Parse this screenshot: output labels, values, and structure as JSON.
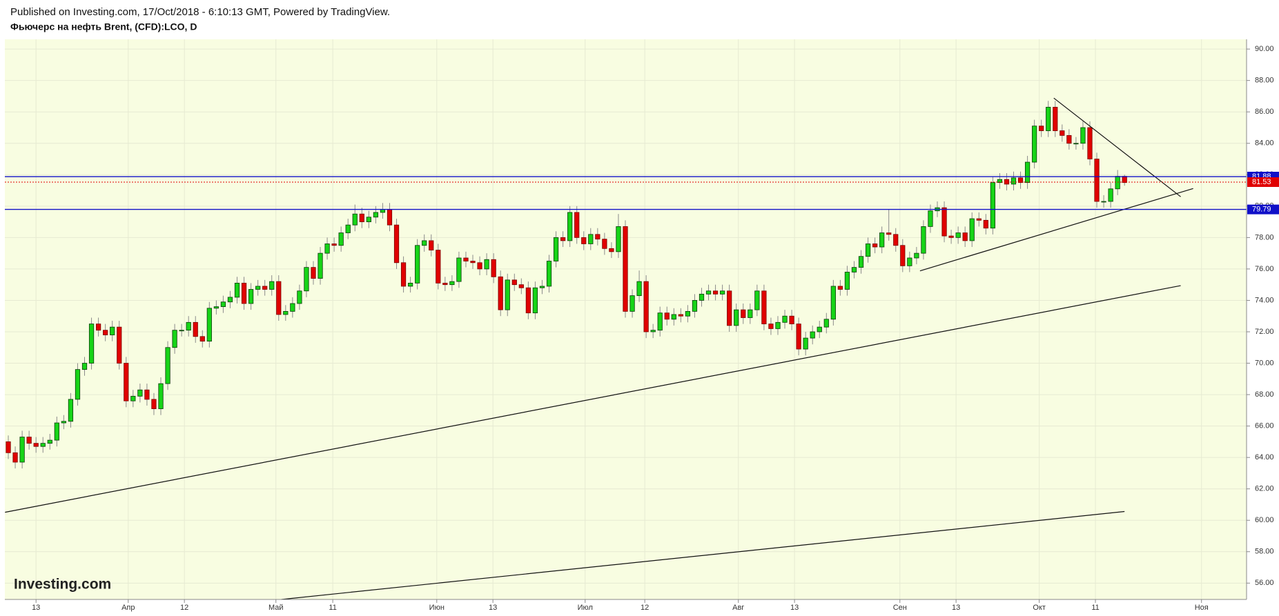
{
  "chart_data": {
    "type": "candlestick",
    "subtitle": "Published on Investing.com, 17/Oct/2018 - 6:10:13 GMT, Powered by TradingView.",
    "title": "Фьючерс на нефть Brent, (CFD):LCO, D",
    "logo": "Investing.com",
    "up_color": "#17d417",
    "down_color": "#e00000",
    "grid": true,
    "xlim": [
      -0.5,
      178.6
    ],
    "ylim": [
      54.96,
      90.62
    ],
    "xticks": [
      {
        "value": 4,
        "label": "13"
      },
      {
        "value": 17.3,
        "label": "Апр"
      },
      {
        "value": 25.4,
        "label": "12"
      },
      {
        "value": 38.6,
        "label": "Май"
      },
      {
        "value": 46.8,
        "label": "11"
      },
      {
        "value": 61.8,
        "label": "Июн"
      },
      {
        "value": 69.9,
        "label": "13"
      },
      {
        "value": 83.2,
        "label": "Июл"
      },
      {
        "value": 91.8,
        "label": "12"
      },
      {
        "value": 105.3,
        "label": "Авг"
      },
      {
        "value": 113.4,
        "label": "13"
      },
      {
        "value": 128.6,
        "label": "Сен"
      },
      {
        "value": 136.7,
        "label": "13"
      },
      {
        "value": 148.7,
        "label": "Окт"
      },
      {
        "value": 156.8,
        "label": "11"
      },
      {
        "value": 172.1,
        "label": "Ноя"
      }
    ],
    "yticks": [
      {
        "value": 56,
        "label": "56.00"
      },
      {
        "value": 58,
        "label": "58.00"
      },
      {
        "value": 60,
        "label": "60.00"
      },
      {
        "value": 62,
        "label": "62.00"
      },
      {
        "value": 64,
        "label": "64.00"
      },
      {
        "value": 66,
        "label": "66.00"
      },
      {
        "value": 68,
        "label": "68.00"
      },
      {
        "value": 70,
        "label": "70.00"
      },
      {
        "value": 72,
        "label": "72.00"
      },
      {
        "value": 74,
        "label": "74.00"
      },
      {
        "value": 76,
        "label": "76.00"
      },
      {
        "value": 78,
        "label": "78.00"
      },
      {
        "value": 80,
        "label": "80.00"
      },
      {
        "value": 82,
        "label": "82.00"
      },
      {
        "value": 84,
        "label": "84.00"
      },
      {
        "value": 86,
        "label": "86.00"
      },
      {
        "value": 88,
        "label": "88.00"
      },
      {
        "value": 90,
        "label": "90.00"
      }
    ],
    "hlines": [
      {
        "value": 81.88,
        "color": "#1010c8",
        "style": "solid"
      },
      {
        "value": 81.53,
        "color": "#e00000",
        "style": "dotted"
      },
      {
        "value": 79.79,
        "color": "#1010c8",
        "style": "solid"
      }
    ],
    "trendlines": [
      {
        "start": [
          -0.47,
          60.51
        ],
        "end": [
          169.1,
          74.94
        ]
      },
      {
        "start": [
          39.4,
          54.96
        ],
        "end": [
          161.0,
          60.56
        ]
      },
      {
        "start": [
          131.5,
          75.88
        ],
        "end": [
          170.9,
          81.12
        ]
      },
      {
        "start": [
          150.8,
          86.88
        ],
        "end": [
          169.1,
          80.6
        ]
      }
    ],
    "ohlc": [
      [
        65.0,
        65.4,
        63.9,
        64.3
      ],
      [
        64.3,
        64.7,
        63.3,
        63.7
      ],
      [
        63.7,
        65.7,
        63.3,
        65.3
      ],
      [
        65.3,
        65.7,
        64.5,
        64.9
      ],
      [
        64.9,
        65.3,
        64.3,
        64.7
      ],
      [
        64.7,
        65.3,
        64.3,
        64.9
      ],
      [
        64.9,
        65.5,
        64.5,
        65.1
      ],
      [
        65.1,
        66.6,
        64.7,
        66.2
      ],
      [
        66.2,
        66.7,
        65.8,
        66.3
      ],
      [
        66.3,
        68.1,
        65.9,
        67.7
      ],
      [
        67.7,
        70.0,
        67.3,
        69.6
      ],
      [
        69.6,
        70.4,
        69.2,
        70.0
      ],
      [
        70.0,
        72.9,
        69.6,
        72.5
      ],
      [
        72.5,
        72.9,
        71.7,
        72.1
      ],
      [
        72.1,
        72.5,
        71.4,
        71.8
      ],
      [
        71.8,
        72.7,
        71.4,
        72.3
      ],
      [
        72.3,
        72.7,
        69.6,
        70.0
      ],
      [
        70.0,
        70.4,
        67.2,
        67.6
      ],
      [
        67.6,
        68.3,
        67.2,
        67.9
      ],
      [
        67.9,
        68.7,
        67.5,
        68.3
      ],
      [
        68.3,
        68.7,
        67.3,
        67.7
      ],
      [
        67.7,
        68.1,
        66.7,
        67.1
      ],
      [
        67.1,
        69.1,
        66.7,
        68.7
      ],
      [
        68.7,
        71.4,
        68.3,
        71.0
      ],
      [
        71.0,
        72.5,
        70.6,
        72.1
      ],
      [
        72.1,
        72.5,
        71.7,
        72.1
      ],
      [
        72.1,
        73.0,
        71.7,
        72.6
      ],
      [
        72.6,
        73.0,
        71.3,
        71.7
      ],
      [
        71.7,
        72.1,
        71.0,
        71.4
      ],
      [
        71.4,
        73.9,
        71.0,
        73.5
      ],
      [
        73.5,
        74.0,
        73.1,
        73.6
      ],
      [
        73.6,
        74.3,
        73.2,
        73.9
      ],
      [
        73.9,
        74.6,
        73.5,
        74.2
      ],
      [
        74.2,
        75.5,
        73.8,
        75.1
      ],
      [
        75.1,
        75.5,
        73.4,
        73.8
      ],
      [
        73.8,
        75.1,
        73.4,
        74.7
      ],
      [
        74.7,
        75.3,
        74.3,
        74.9
      ],
      [
        74.9,
        75.3,
        74.3,
        74.7
      ],
      [
        74.7,
        75.6,
        74.3,
        75.2
      ],
      [
        75.2,
        75.6,
        72.7,
        73.1
      ],
      [
        73.1,
        73.7,
        72.7,
        73.3
      ],
      [
        73.3,
        74.2,
        72.9,
        73.8
      ],
      [
        73.8,
        75.0,
        73.4,
        74.6
      ],
      [
        74.6,
        76.5,
        74.2,
        76.1
      ],
      [
        76.1,
        76.5,
        75.0,
        75.4
      ],
      [
        75.4,
        77.4,
        75.0,
        77.0
      ],
      [
        77.0,
        78.0,
        76.6,
        77.6
      ],
      [
        77.6,
        78.0,
        77.1,
        77.5
      ],
      [
        77.5,
        78.7,
        77.1,
        78.3
      ],
      [
        78.3,
        79.2,
        77.9,
        78.8
      ],
      [
        78.8,
        80.1,
        78.4,
        79.5
      ],
      [
        79.5,
        79.9,
        78.6,
        79.0
      ],
      [
        79.0,
        79.7,
        78.6,
        79.3
      ],
      [
        79.3,
        80.0,
        78.9,
        79.6
      ],
      [
        79.6,
        80.2,
        79.2,
        79.8
      ],
      [
        79.8,
        80.2,
        78.4,
        78.8
      ],
      [
        78.8,
        79.2,
        76.0,
        76.4
      ],
      [
        76.4,
        76.8,
        74.5,
        74.9
      ],
      [
        74.9,
        75.5,
        74.5,
        75.1
      ],
      [
        75.1,
        77.9,
        74.7,
        77.5
      ],
      [
        77.5,
        78.2,
        77.1,
        77.8
      ],
      [
        77.8,
        78.2,
        76.8,
        77.2
      ],
      [
        77.2,
        77.6,
        74.7,
        75.1
      ],
      [
        75.1,
        75.5,
        74.6,
        75.0
      ],
      [
        75.0,
        75.6,
        74.6,
        75.2
      ],
      [
        75.2,
        77.1,
        74.8,
        76.7
      ],
      [
        76.7,
        77.1,
        76.1,
        76.5
      ],
      [
        76.5,
        76.9,
        76.0,
        76.4
      ],
      [
        76.4,
        76.8,
        75.6,
        76.0
      ],
      [
        76.0,
        77.0,
        75.6,
        76.6
      ],
      [
        76.6,
        77.0,
        75.1,
        75.5
      ],
      [
        75.5,
        75.9,
        73.0,
        73.4
      ],
      [
        73.4,
        75.7,
        73.0,
        75.3
      ],
      [
        75.3,
        75.7,
        74.6,
        75.0
      ],
      [
        75.0,
        75.4,
        74.4,
        74.8
      ],
      [
        74.8,
        75.2,
        72.8,
        73.2
      ],
      [
        73.2,
        75.2,
        72.8,
        74.8
      ],
      [
        74.8,
        75.3,
        74.4,
        74.9
      ],
      [
        74.9,
        76.9,
        74.5,
        76.5
      ],
      [
        76.5,
        78.4,
        76.1,
        78.0
      ],
      [
        78.0,
        78.4,
        77.4,
        77.8
      ],
      [
        77.8,
        80.0,
        77.4,
        79.6
      ],
      [
        79.6,
        80.0,
        77.6,
        78.0
      ],
      [
        78.0,
        78.4,
        77.2,
        77.6
      ],
      [
        77.6,
        78.6,
        77.2,
        78.2
      ],
      [
        78.2,
        78.6,
        77.5,
        77.9
      ],
      [
        77.9,
        78.3,
        76.9,
        77.3
      ],
      [
        77.3,
        77.7,
        76.7,
        77.1
      ],
      [
        77.1,
        79.5,
        76.7,
        78.7
      ],
      [
        78.7,
        79.1,
        72.9,
        73.3
      ],
      [
        73.3,
        74.7,
        72.9,
        74.3
      ],
      [
        74.3,
        75.9,
        73.9,
        75.2
      ],
      [
        75.2,
        75.6,
        71.6,
        72.0
      ],
      [
        72.0,
        72.5,
        71.6,
        72.1
      ],
      [
        72.1,
        73.6,
        71.7,
        73.2
      ],
      [
        73.2,
        73.6,
        72.4,
        72.8
      ],
      [
        72.8,
        73.5,
        72.4,
        73.1
      ],
      [
        73.1,
        73.5,
        72.6,
        73.0
      ],
      [
        73.0,
        73.7,
        72.6,
        73.3
      ],
      [
        73.3,
        74.4,
        72.9,
        74.0
      ],
      [
        74.0,
        74.8,
        73.6,
        74.4
      ],
      [
        74.4,
        75.0,
        74.0,
        74.6
      ],
      [
        74.6,
        75.0,
        74.0,
        74.4
      ],
      [
        74.4,
        75.0,
        74.0,
        74.6
      ],
      [
        74.6,
        75.0,
        72.0,
        72.4
      ],
      [
        72.4,
        73.8,
        72.0,
        73.4
      ],
      [
        73.4,
        73.8,
        72.5,
        72.9
      ],
      [
        72.9,
        73.8,
        72.5,
        73.4
      ],
      [
        73.4,
        75.0,
        73.0,
        74.6
      ],
      [
        74.6,
        75.0,
        72.1,
        72.5
      ],
      [
        72.5,
        72.9,
        71.8,
        72.2
      ],
      [
        72.2,
        73.0,
        71.8,
        72.6
      ],
      [
        72.6,
        73.4,
        72.2,
        73.0
      ],
      [
        73.0,
        73.4,
        72.1,
        72.5
      ],
      [
        72.5,
        72.9,
        70.5,
        70.9
      ],
      [
        70.9,
        72.0,
        70.5,
        71.6
      ],
      [
        71.6,
        72.4,
        71.2,
        72.0
      ],
      [
        72.0,
        72.7,
        71.6,
        72.3
      ],
      [
        72.3,
        73.2,
        71.9,
        72.8
      ],
      [
        72.8,
        75.3,
        72.4,
        74.9
      ],
      [
        74.9,
        75.3,
        74.3,
        74.7
      ],
      [
        74.7,
        76.2,
        74.3,
        75.8
      ],
      [
        75.8,
        76.5,
        75.4,
        76.1
      ],
      [
        76.1,
        77.2,
        75.7,
        76.8
      ],
      [
        76.8,
        78.0,
        76.4,
        77.6
      ],
      [
        77.6,
        78.0,
        77.0,
        77.4
      ],
      [
        77.4,
        78.7,
        77.0,
        78.3
      ],
      [
        78.3,
        79.8,
        77.8,
        78.2
      ],
      [
        78.2,
        78.6,
        77.1,
        77.5
      ],
      [
        77.5,
        77.9,
        75.8,
        76.2
      ],
      [
        76.2,
        77.1,
        75.8,
        76.7
      ],
      [
        76.7,
        77.4,
        76.3,
        77.0
      ],
      [
        77.0,
        79.1,
        76.6,
        78.7
      ],
      [
        78.7,
        80.1,
        78.3,
        79.7
      ],
      [
        79.7,
        80.3,
        79.3,
        79.9
      ],
      [
        79.9,
        80.3,
        77.7,
        78.1
      ],
      [
        78.1,
        78.5,
        77.6,
        78.0
      ],
      [
        78.0,
        78.7,
        77.6,
        78.3
      ],
      [
        78.3,
        78.7,
        77.4,
        77.8
      ],
      [
        77.8,
        79.6,
        77.4,
        79.2
      ],
      [
        79.2,
        79.6,
        78.7,
        79.1
      ],
      [
        79.1,
        79.5,
        78.2,
        78.6
      ],
      [
        78.6,
        81.9,
        78.2,
        81.5
      ],
      [
        81.5,
        82.1,
        81.1,
        81.7
      ],
      [
        81.7,
        82.1,
        81.0,
        81.4
      ],
      [
        81.4,
        82.2,
        81.0,
        81.8
      ],
      [
        81.8,
        82.2,
        81.1,
        81.5
      ],
      [
        81.5,
        83.2,
        81.1,
        82.8
      ],
      [
        82.8,
        85.5,
        82.4,
        85.1
      ],
      [
        85.1,
        85.5,
        84.4,
        84.8
      ],
      [
        84.8,
        86.7,
        84.4,
        86.3
      ],
      [
        86.3,
        86.7,
        84.4,
        84.8
      ],
      [
        84.8,
        85.2,
        84.1,
        84.5
      ],
      [
        84.5,
        84.9,
        83.6,
        84.0
      ],
      [
        84.0,
        84.4,
        83.6,
        84.0
      ],
      [
        84.0,
        85.4,
        83.6,
        85.0
      ],
      [
        85.0,
        85.4,
        82.6,
        83.0
      ],
      [
        83.0,
        83.4,
        79.9,
        80.3
      ],
      [
        80.3,
        80.7,
        79.9,
        80.3
      ],
      [
        80.3,
        81.5,
        79.9,
        81.1
      ],
      [
        81.1,
        82.3,
        80.7,
        81.9
      ],
      [
        81.9,
        82.0,
        81.3,
        81.5
      ]
    ]
  }
}
